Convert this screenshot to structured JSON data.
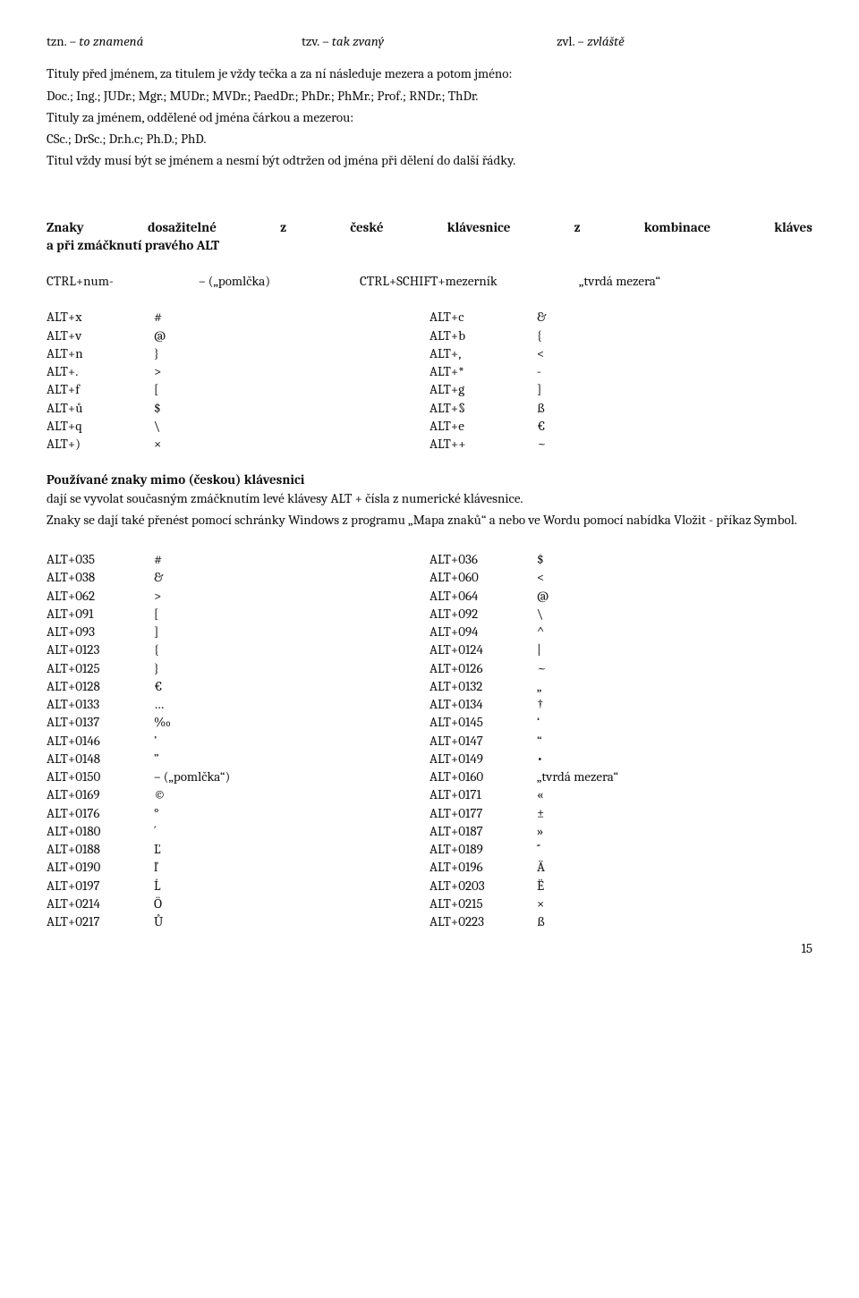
{
  "abbrev": {
    "a1_k": "tzn. – ",
    "a1_v": "to znamená",
    "a2_k": "tzv. – ",
    "a2_v": "tak zvaný",
    "a3_k": "zvl. – ",
    "a3_v": "zvláště"
  },
  "p1": "Tituly před jménem, za titulem je vždy tečka a za ní následuje mezera a potom jméno:",
  "p2": "Doc.; Ing.; JUDr.; Mgr.; MUDr.; MVDr.; PaedDr.; PhDr.; PhMr.; Prof.; RNDr.; ThDr.",
  "p3": "Tituly za jménem, oddělené od jména čárkou a mezerou:",
  "p4": "CSc.; DrSc.; Dr.h.c; Ph.D.; PhD.",
  "p5": "Titul vždy musí být se jménem a nesmí být odtržen od jména při dělení do další řádky.",
  "h1_words": [
    "Znaky",
    "dosažitelné",
    "z",
    "české",
    "klávesnice",
    "z",
    "kombinace",
    "kláves"
  ],
  "h1_line2": "a při zmáčknutí pravého ALT",
  "ctrl": {
    "a": "CTRL+num-",
    "b": "– („pomlčka)",
    "c": "CTRL+SCHIFT+mezerník",
    "d": "„tvrdá mezera“"
  },
  "alt1": {
    "left": [
      {
        "k": "ALT+x",
        "v": "#"
      },
      {
        "k": "ALT+v",
        "v": "@"
      },
      {
        "k": "ALT+n",
        "v": "}"
      },
      {
        "k": "ALT+.",
        "v": ">"
      },
      {
        "k": "ALT+f",
        "v": "["
      },
      {
        "k": "ALT+ů",
        "v": "$"
      },
      {
        "k": "ALT+q",
        "v": "\\"
      },
      {
        "k": "ALT+)",
        "v": "×"
      }
    ],
    "right": [
      {
        "k": "ALT+c",
        "v": "&"
      },
      {
        "k": "ALT+b",
        "v": "{"
      },
      {
        "k": "ALT+,",
        "v": "<"
      },
      {
        "k": "ALT+*",
        "v": "-"
      },
      {
        "k": "ALT+g",
        "v": "]"
      },
      {
        "k": "ALT+§",
        "v": "ß"
      },
      {
        "k": "ALT+e",
        "v": "€"
      },
      {
        "k": "ALT++",
        "v": "~"
      }
    ]
  },
  "h2": "Používané znaky mimo (českou) klávesnici",
  "p6": "dají se vyvolat současným zmáčknutím levé klávesy ALT + čísla z numerické klávesnice.",
  "p7": "Znaky se dají také přenést pomocí schránky Windows z programu „Mapa znaků“ a nebo ve Wordu pomocí nabídka Vložit - příkaz Symbol.",
  "alt2": {
    "left": [
      {
        "k": "ALT+035",
        "v": "#"
      },
      {
        "k": "ALT+038",
        "v": "&"
      },
      {
        "k": "ALT+062",
        "v": ">"
      },
      {
        "k": "ALT+091",
        "v": "["
      },
      {
        "k": "ALT+093",
        "v": "]"
      },
      {
        "k": "ALT+0123",
        "v": "{"
      },
      {
        "k": "ALT+0125",
        "v": "}"
      },
      {
        "k": "ALT+0128",
        "v": "€"
      },
      {
        "k": "ALT+0133",
        "v": "…"
      },
      {
        "k": "ALT+0137",
        "v": "‰"
      },
      {
        "k": "ALT+0146",
        "v": "’"
      },
      {
        "k": "ALT+0148",
        "v": "”"
      },
      {
        "k": "ALT+0150",
        "v": "– („pomlčka“)"
      },
      {
        "k": "ALT+0169",
        "v": "©"
      },
      {
        "k": "ALT+0176",
        "v": "°"
      },
      {
        "k": "ALT+0180",
        "v": "´"
      },
      {
        "k": "ALT+0188",
        "v": "Ľ"
      },
      {
        "k": "ALT+0190",
        "v": "ľ"
      },
      {
        "k": "ALT+0197",
        "v": "Ĺ"
      },
      {
        "k": "ALT+0214",
        "v": "Ö"
      },
      {
        "k": "ALT+0217",
        "v": "Ů"
      }
    ],
    "right": [
      {
        "k": "ALT+036",
        "v": "$"
      },
      {
        "k": "ALT+060",
        "v": "<"
      },
      {
        "k": "ALT+064",
        "v": "@"
      },
      {
        "k": "ALT+092",
        "v": "\\"
      },
      {
        "k": "ALT+094",
        "v": "^"
      },
      {
        "k": "ALT+0124",
        "v": "|"
      },
      {
        "k": "ALT+0126",
        "v": "~"
      },
      {
        "k": "ALT+0132",
        "v": "„"
      },
      {
        "k": "ALT+0134",
        "v": "†"
      },
      {
        "k": "ALT+0145",
        "v": "‘"
      },
      {
        "k": "ALT+0147",
        "v": "“"
      },
      {
        "k": "ALT+0149",
        "v": "•"
      },
      {
        "k": "ALT+0160",
        "v": "„tvrdá mezera“"
      },
      {
        "k": "ALT+0171",
        "v": "«"
      },
      {
        "k": "ALT+0177",
        "v": "±"
      },
      {
        "k": "ALT+0187",
        "v": "»"
      },
      {
        "k": "ALT+0189",
        "v": "˝"
      },
      {
        "k": "ALT+0196",
        "v": "Ä"
      },
      {
        "k": "ALT+0203",
        "v": "Ë"
      },
      {
        "k": "ALT+0215",
        "v": "×"
      },
      {
        "k": "ALT+0223",
        "v": "ß"
      }
    ]
  },
  "page": "15"
}
